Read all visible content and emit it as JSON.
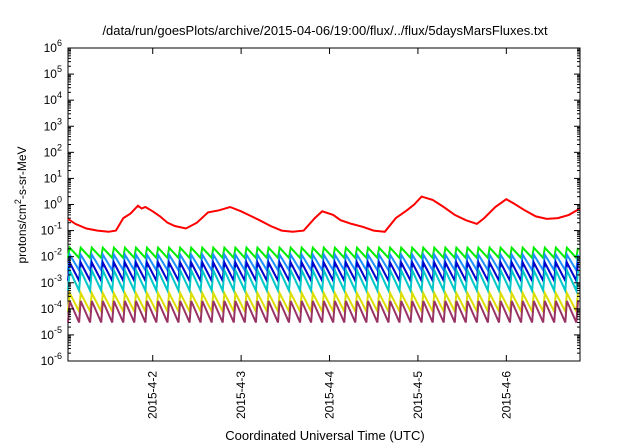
{
  "chart_data": {
    "type": "line",
    "title": "/data/run/goesPlots/archive/2015-04-06/19:00/flux/../flux/5daysMarsFluxes.txt",
    "xlabel": "Coordinated Universal Time (UTC)",
    "ylabel": {
      "base": "protons/cm",
      "sup": "2",
      "rest": "-s-sr-MeV"
    },
    "yscale": "log",
    "ylim": [
      1e-06,
      1000000.0
    ],
    "yticks": [
      {
        "exp": "-6",
        "value": 1e-06
      },
      {
        "exp": "-5",
        "value": 1e-05
      },
      {
        "exp": "-4",
        "value": 0.0001
      },
      {
        "exp": "-3",
        "value": 0.001
      },
      {
        "exp": "-2",
        "value": 0.01
      },
      {
        "exp": "-1",
        "value": 0.1
      },
      {
        "exp": "0",
        "value": 1
      },
      {
        "exp": "1",
        "value": 10
      },
      {
        "exp": "2",
        "value": 100
      },
      {
        "exp": "3",
        "value": 1000
      },
      {
        "exp": "4",
        "value": 10000
      },
      {
        "exp": "5",
        "value": 100000
      },
      {
        "exp": "6",
        "value": 1000000
      }
    ],
    "xlim": [
      "2015-04-01T01:00",
      "2015-04-06T20:00"
    ],
    "xticks": [
      {
        "label": "2015-4-2",
        "at": "2015-04-02T00:00"
      },
      {
        "label": "2015-4-3",
        "at": "2015-04-03T00:00"
      },
      {
        "label": "2015-4-4",
        "at": "2015-04-04T00:00"
      },
      {
        "label": "2015-4-5",
        "at": "2015-04-05T00:00"
      },
      {
        "label": "2015-4-6",
        "at": "2015-04-06T00:00"
      }
    ],
    "grid": false,
    "series": [
      {
        "color": "#ff0000",
        "x": [
          "2015-04-01T01:00",
          "2015-04-01T03:00",
          "2015-04-01T06:00",
          "2015-04-01T09:00",
          "2015-04-01T12:00",
          "2015-04-01T14:00",
          "2015-04-01T16:00",
          "2015-04-01T18:00",
          "2015-04-01T20:00",
          "2015-04-01T21:00",
          "2015-04-01T22:00",
          "2015-04-02T00:00",
          "2015-04-02T02:00",
          "2015-04-02T04:00",
          "2015-04-02T06:00",
          "2015-04-02T09:00",
          "2015-04-02T12:00",
          "2015-04-02T15:00",
          "2015-04-02T18:00",
          "2015-04-02T21:00",
          "2015-04-03T00:00",
          "2015-04-03T02:00",
          "2015-04-03T05:00",
          "2015-04-03T08:00",
          "2015-04-03T11:00",
          "2015-04-03T14:00",
          "2015-04-03T17:00",
          "2015-04-03T20:00",
          "2015-04-03T22:00",
          "2015-04-04T01:00",
          "2015-04-04T03:00",
          "2015-04-04T06:00",
          "2015-04-04T09:00",
          "2015-04-04T12:00",
          "2015-04-04T15:00",
          "2015-04-04T18:00",
          "2015-04-04T21:00",
          "2015-04-04T23:00",
          "2015-04-05T01:00",
          "2015-04-05T04:00",
          "2015-04-05T07:00",
          "2015-04-05T10:00",
          "2015-04-05T13:00",
          "2015-04-05T16:00",
          "2015-04-05T18:00",
          "2015-04-05T21:00",
          "2015-04-06T00:00",
          "2015-04-06T02:00",
          "2015-04-06T05:00",
          "2015-04-06T08:00",
          "2015-04-06T11:00",
          "2015-04-06T14:00",
          "2015-04-06T17:00",
          "2015-04-06T20:00"
        ],
        "y": [
          0.28,
          0.18,
          0.12,
          0.1,
          0.09,
          0.1,
          0.3,
          0.45,
          0.9,
          0.7,
          0.8,
          0.55,
          0.35,
          0.2,
          0.15,
          0.12,
          0.2,
          0.5,
          0.6,
          0.8,
          0.55,
          0.4,
          0.25,
          0.15,
          0.1,
          0.09,
          0.1,
          0.3,
          0.55,
          0.4,
          0.25,
          0.18,
          0.14,
          0.1,
          0.09,
          0.3,
          0.6,
          1.0,
          2.0,
          1.5,
          0.8,
          0.4,
          0.25,
          0.18,
          0.3,
          0.8,
          1.6,
          1.1,
          0.6,
          0.35,
          0.28,
          0.3,
          0.4,
          0.7
        ]
      },
      {
        "color": "#00ee00",
        "period_hours": 3,
        "peak": 0.022,
        "trough": 0.009,
        "x_start": "2015-04-01T01:00",
        "x_end": "2015-04-06T20:00"
      },
      {
        "color": "#1e90ff",
        "period_hours": 3,
        "peak": 0.012,
        "trough": 0.003,
        "x_start": "2015-04-01T01:00",
        "x_end": "2015-04-06T20:00"
      },
      {
        "color": "#0000cc",
        "period_hours": 3,
        "peak": 0.006,
        "trough": 0.0012,
        "x_start": "2015-04-01T01:00",
        "x_end": "2015-04-06T20:00"
      },
      {
        "color": "#00c8c8",
        "period_hours": 3,
        "peak": 0.003,
        "trough": 0.0005,
        "x_start": "2015-04-01T01:00",
        "x_end": "2015-04-06T20:00"
      },
      {
        "color": "#dddd00",
        "period_hours": 3,
        "peak": 0.0004,
        "trough": 8e-05,
        "x_start": "2015-04-01T01:00",
        "x_end": "2015-04-06T20:00"
      },
      {
        "color": "#993366",
        "period_hours": 3,
        "peak": 0.0002,
        "trough": 3e-05,
        "x_start": "2015-04-01T01:00",
        "x_end": "2015-04-06T20:00"
      }
    ]
  }
}
